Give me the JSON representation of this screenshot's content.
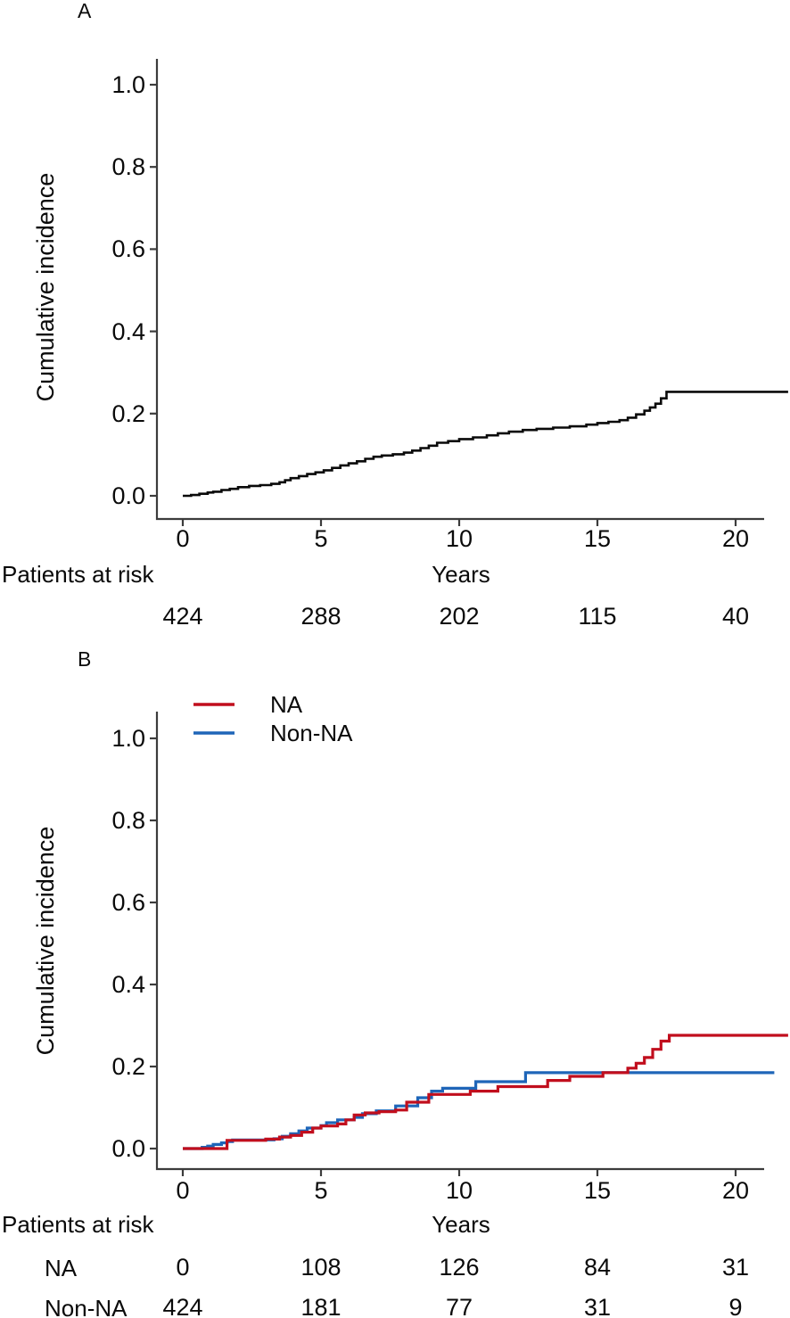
{
  "figure_background": "#ffffff",
  "text_color": "#0a0a0a",
  "axis_color": "#3c3c3c",
  "panels": [
    {
      "label": "A"
    },
    {
      "label": "B"
    }
  ],
  "chart_data": [
    {
      "panel_label": "A",
      "type": "line",
      "line_style": "step",
      "xlabel": "Years",
      "ylabel": "Cumulative incidence",
      "xlim": [
        0,
        22
      ],
      "ylim": [
        0,
        1.05
      ],
      "xticks": [
        0,
        5,
        10,
        15,
        20
      ],
      "ytick_labels": [
        "0.0",
        "0.2",
        "0.4",
        "0.6",
        "0.8",
        "1.0"
      ],
      "grid": false,
      "legend": null,
      "series": [
        {
          "name": "",
          "color": "#0a0a0a",
          "step_points": [
            [
              0,
              0
            ],
            [
              0.3,
              0.002
            ],
            [
              0.6,
              0.005
            ],
            [
              0.9,
              0.008
            ],
            [
              1.1,
              0.01
            ],
            [
              1.4,
              0.014
            ],
            [
              1.7,
              0.017
            ],
            [
              2.0,
              0.021
            ],
            [
              2.4,
              0.024
            ],
            [
              2.8,
              0.026
            ],
            [
              3.2,
              0.029
            ],
            [
              3.5,
              0.033
            ],
            [
              3.7,
              0.038
            ],
            [
              3.9,
              0.043
            ],
            [
              4.2,
              0.048
            ],
            [
              4.5,
              0.053
            ],
            [
              4.8,
              0.057
            ],
            [
              5.1,
              0.062
            ],
            [
              5.4,
              0.068
            ],
            [
              5.7,
              0.074
            ],
            [
              6.0,
              0.079
            ],
            [
              6.3,
              0.084
            ],
            [
              6.6,
              0.09
            ],
            [
              6.9,
              0.095
            ],
            [
              7.2,
              0.098
            ],
            [
              7.6,
              0.101
            ],
            [
              8.0,
              0.105
            ],
            [
              8.3,
              0.11
            ],
            [
              8.6,
              0.116
            ],
            [
              8.9,
              0.122
            ],
            [
              9.2,
              0.129
            ],
            [
              9.6,
              0.133
            ],
            [
              10.0,
              0.138
            ],
            [
              10.5,
              0.142
            ],
            [
              11.0,
              0.147
            ],
            [
              11.4,
              0.152
            ],
            [
              11.8,
              0.156
            ],
            [
              12.3,
              0.16
            ],
            [
              12.8,
              0.163
            ],
            [
              13.4,
              0.166
            ],
            [
              14.0,
              0.169
            ],
            [
              14.6,
              0.173
            ],
            [
              15.0,
              0.177
            ],
            [
              15.4,
              0.18
            ],
            [
              15.8,
              0.184
            ],
            [
              16.1,
              0.19
            ],
            [
              16.4,
              0.198
            ],
            [
              16.7,
              0.207
            ],
            [
              16.9,
              0.215
            ],
            [
              17.1,
              0.224
            ],
            [
              17.3,
              0.237
            ],
            [
              17.5,
              0.253
            ],
            [
              21.9,
              0.253
            ]
          ]
        }
      ],
      "risk_table": {
        "header": "Patients at risk",
        "time_points": [
          0,
          5,
          10,
          15,
          20
        ],
        "rows": [
          {
            "name": "",
            "counts": [
              "424",
              "288",
              "202",
              "115",
              "40"
            ]
          }
        ]
      }
    },
    {
      "panel_label": "B",
      "type": "line",
      "line_style": "step",
      "xlabel": "Years",
      "ylabel": "Cumulative incidence",
      "xlim": [
        0,
        22
      ],
      "ylim": [
        0,
        1.05
      ],
      "xticks": [
        0,
        5,
        10,
        15,
        20
      ],
      "ytick_labels": [
        "0.0",
        "0.2",
        "0.4",
        "0.6",
        "0.8",
        "1.0"
      ],
      "grid": false,
      "legend": {
        "position": "top-left",
        "entries": [
          "NA",
          "Non-NA"
        ]
      },
      "series": [
        {
          "name": "NA",
          "color": "#c10e1d",
          "step_points": [
            [
              0,
              0
            ],
            [
              1.6,
              0.02
            ],
            [
              3.0,
              0.023
            ],
            [
              3.5,
              0.028
            ],
            [
              3.9,
              0.032
            ],
            [
              4.3,
              0.04
            ],
            [
              4.7,
              0.05
            ],
            [
              5.0,
              0.055
            ],
            [
              5.6,
              0.06
            ],
            [
              5.9,
              0.07
            ],
            [
              6.2,
              0.082
            ],
            [
              6.6,
              0.087
            ],
            [
              7.1,
              0.09
            ],
            [
              7.7,
              0.094
            ],
            [
              8.1,
              0.113
            ],
            [
              8.9,
              0.132
            ],
            [
              10.4,
              0.14
            ],
            [
              11.4,
              0.151
            ],
            [
              13.2,
              0.166
            ],
            [
              14.0,
              0.176
            ],
            [
              15.2,
              0.185
            ],
            [
              16.1,
              0.196
            ],
            [
              16.4,
              0.208
            ],
            [
              16.7,
              0.222
            ],
            [
              17.0,
              0.242
            ],
            [
              17.3,
              0.262
            ],
            [
              17.6,
              0.276
            ],
            [
              21.9,
              0.276
            ]
          ]
        },
        {
          "name": "Non-NA",
          "color": "#1e65b8",
          "step_points": [
            [
              0,
              0
            ],
            [
              0.7,
              0.003
            ],
            [
              0.9,
              0.006
            ],
            [
              1.1,
              0.01
            ],
            [
              1.4,
              0.014
            ],
            [
              1.6,
              0.017
            ],
            [
              1.8,
              0.021
            ],
            [
              3.3,
              0.024
            ],
            [
              3.6,
              0.03
            ],
            [
              3.9,
              0.036
            ],
            [
              4.2,
              0.043
            ],
            [
              4.5,
              0.05
            ],
            [
              5.0,
              0.056
            ],
            [
              5.2,
              0.063
            ],
            [
              5.6,
              0.07
            ],
            [
              6.2,
              0.076
            ],
            [
              6.5,
              0.085
            ],
            [
              7.0,
              0.092
            ],
            [
              7.7,
              0.104
            ],
            [
              8.5,
              0.124
            ],
            [
              9.0,
              0.14
            ],
            [
              9.4,
              0.147
            ],
            [
              10.6,
              0.163
            ],
            [
              12.4,
              0.185
            ],
            [
              21.4,
              0.185
            ]
          ]
        }
      ],
      "risk_table": {
        "header": "Patients at risk",
        "time_points": [
          0,
          5,
          10,
          15,
          20
        ],
        "rows": [
          {
            "name": "NA",
            "counts": [
              "0",
              "108",
              "126",
              "84",
              "31"
            ]
          },
          {
            "name": "Non-NA",
            "counts": [
              "424",
              "181",
              "77",
              "31",
              "9"
            ]
          }
        ]
      }
    }
  ]
}
